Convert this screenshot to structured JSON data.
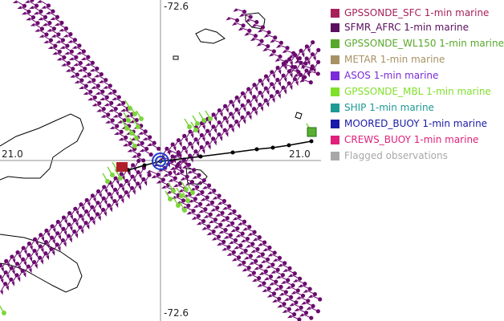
{
  "map": {
    "labels": {
      "top": "-72.6",
      "bottom": "-72.6",
      "left": "21.0",
      "right": "21.0"
    },
    "colors": {
      "wind_barb": "#6b0a6e",
      "mbl": "#7dd63c",
      "wl150": "#58b030",
      "track": "#000000",
      "circle": "#1e3cc8",
      "sfc_marker": "#b0202a",
      "coast": "#000000",
      "crosshair": "#909090"
    }
  },
  "legend": {
    "items": [
      {
        "label": "GPSSONDE_SFC 1-min marine",
        "color": "#a8205a"
      },
      {
        "label": "SFMR_AFRC 1-min marine",
        "color": "#5a0f5f"
      },
      {
        "label": "GPSSONDE_WL150 1-min marine",
        "color": "#58a82a"
      },
      {
        "label": "METAR 1-min marine",
        "color": "#a89264"
      },
      {
        "label": "ASOS 1-min marine",
        "color": "#7a2ad8"
      },
      {
        "label": "GPSSONDE_MBL 1-min marine",
        "color": "#7fe02a"
      },
      {
        "label": "SHIP 1-min marine",
        "color": "#1c9a94"
      },
      {
        "label": "MOORED_BUOY 1-min marine",
        "color": "#1a1aa8"
      },
      {
        "label": "CREWS_BUOY 1-min marine",
        "color": "#e0207a"
      },
      {
        "label": "Flagged observations",
        "color": "#a8a8a8"
      }
    ]
  }
}
